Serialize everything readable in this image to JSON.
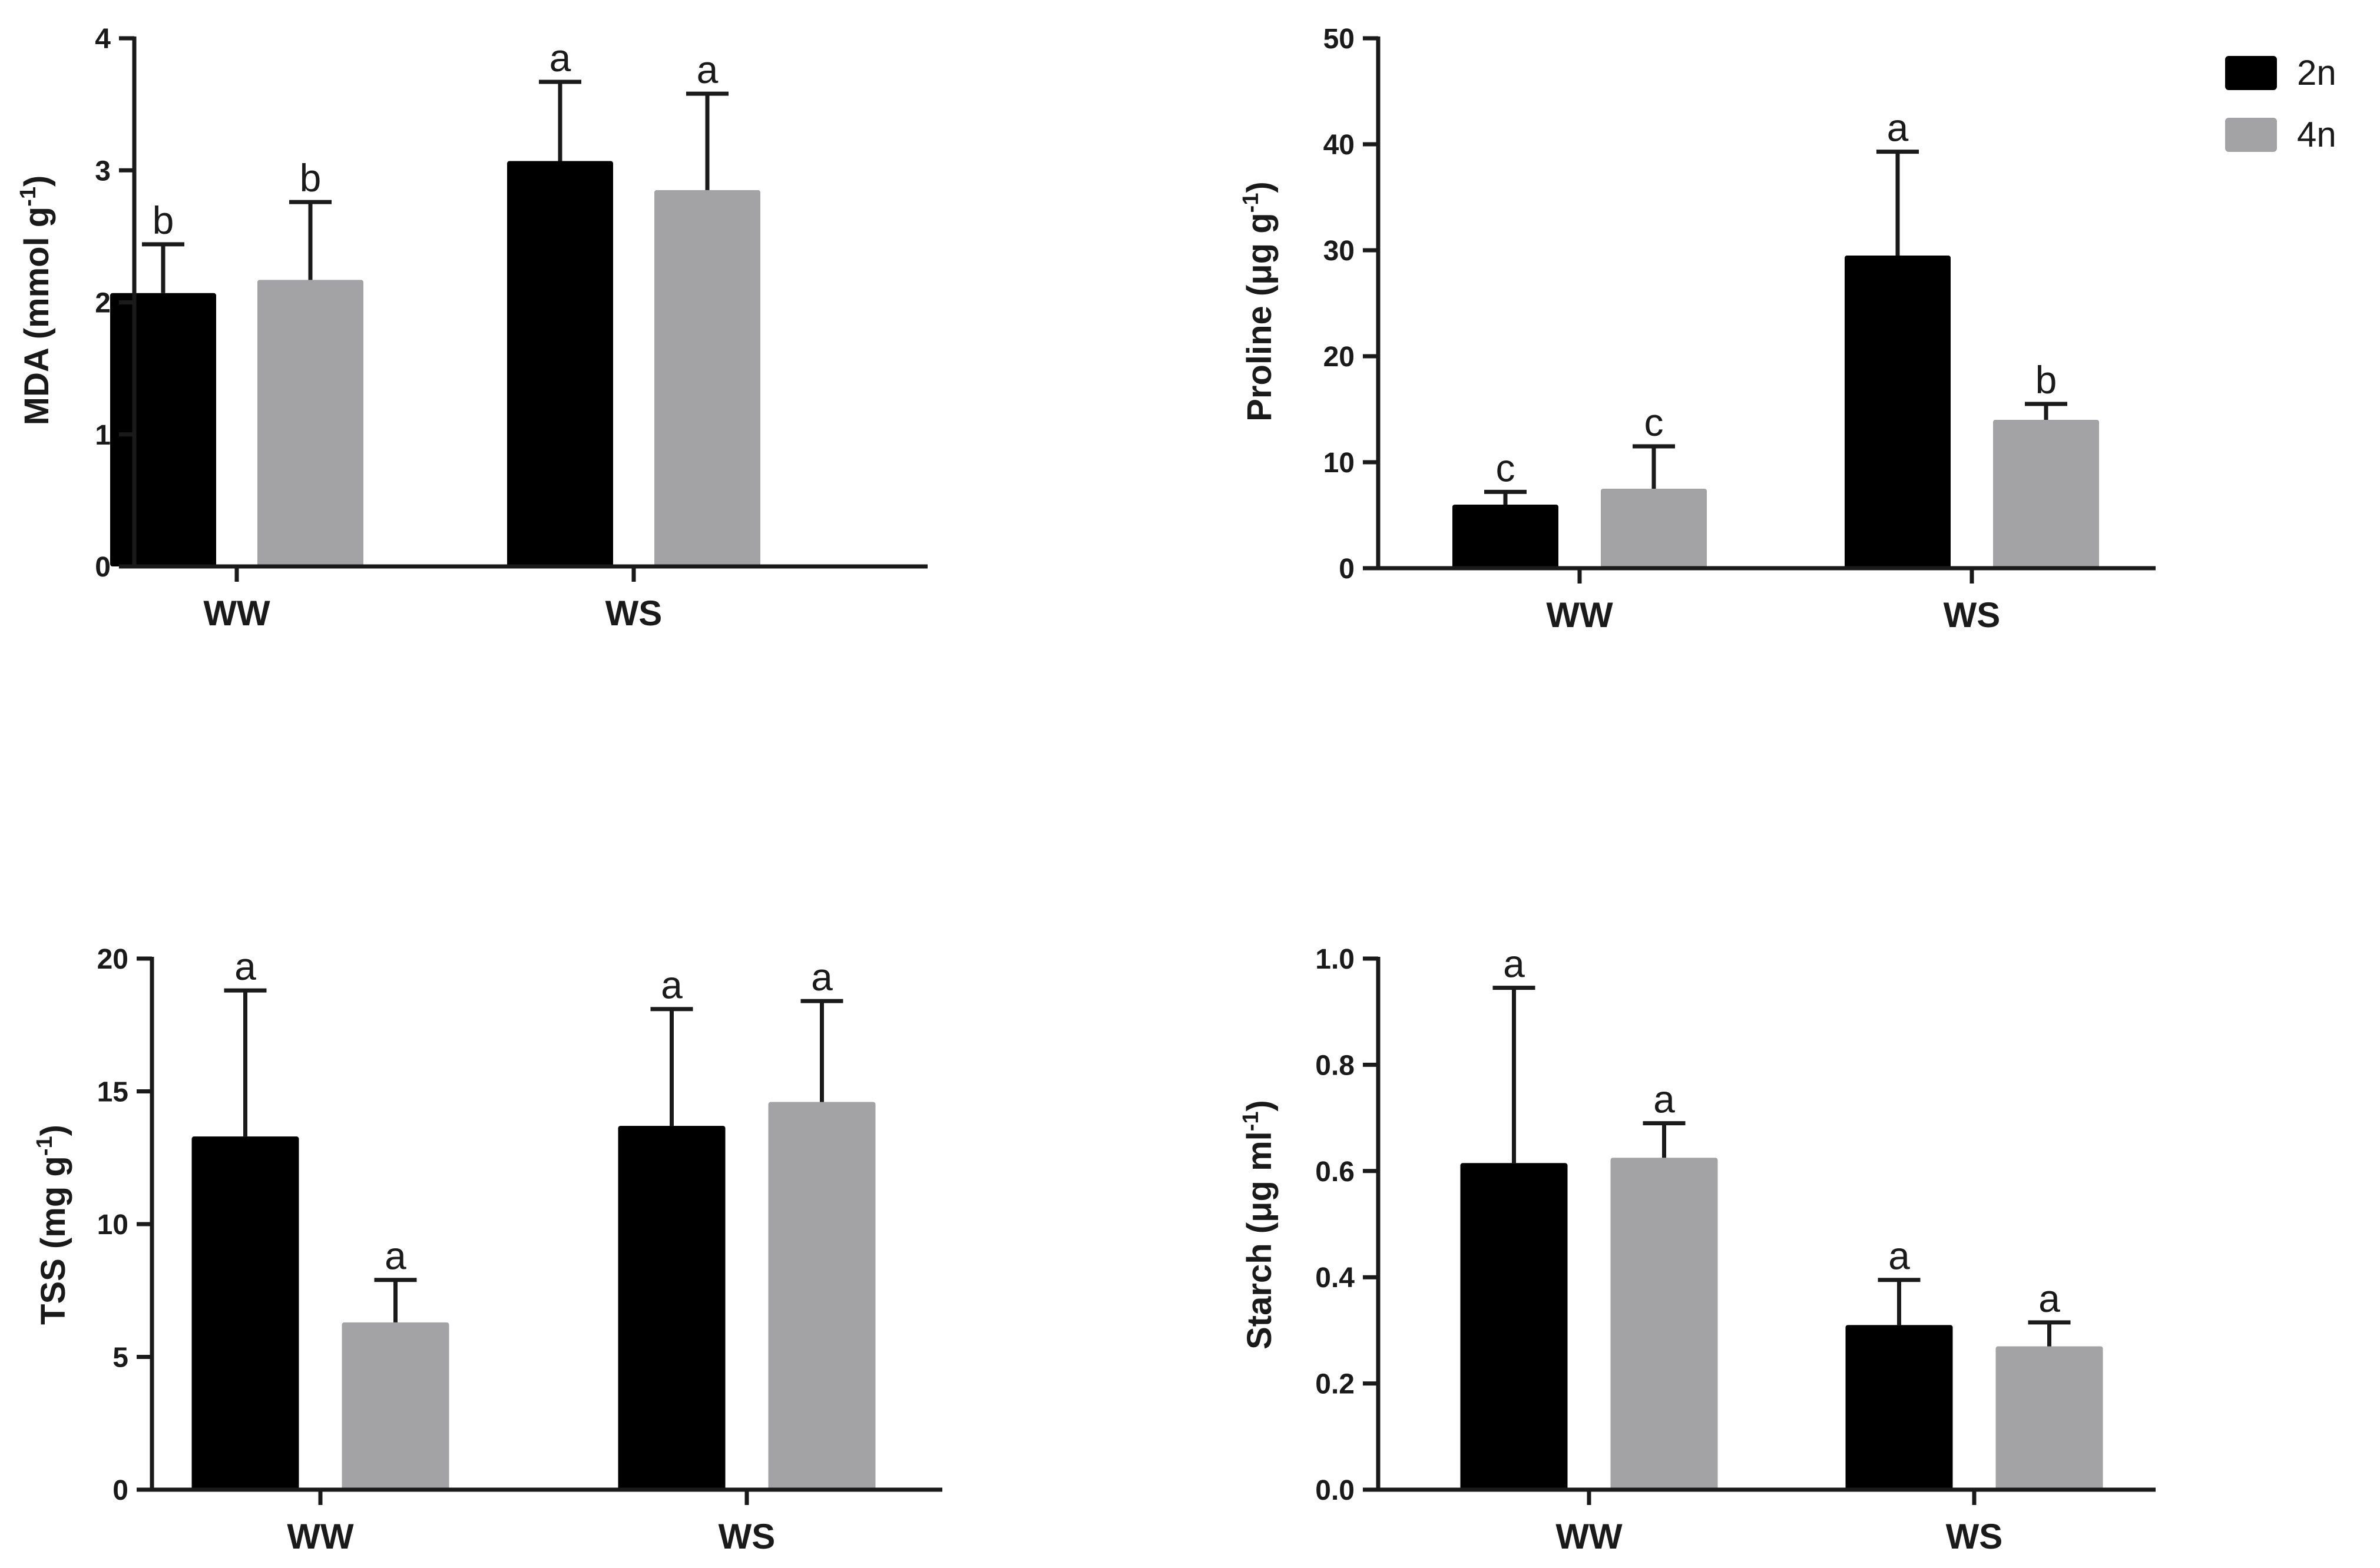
{
  "colors": {
    "2n": "#000000",
    "4n": "#a3a3a6",
    "axis": "#1a1a1a"
  },
  "legend": [
    {
      "name": "2n",
      "color_key": "2n"
    },
    {
      "name": "4n",
      "color_key": "4n"
    }
  ],
  "chart_data": [
    {
      "type": "bar",
      "ylabel_main": "MDA (mmol g",
      "ylabel_sup": "-1",
      "ylabel_end": ")",
      "categories": [
        "WW",
        "WS"
      ],
      "ylim": [
        0,
        4
      ],
      "yticks": [
        0,
        1,
        2,
        3,
        4
      ],
      "tick_labels": [
        "0",
        "1",
        "2",
        "3",
        "4"
      ],
      "series": [
        {
          "name": "2n",
          "values": [
            2.07,
            3.07
          ],
          "errors": [
            0.37,
            0.6
          ],
          "letters": [
            "b",
            "a"
          ]
        },
        {
          "name": "4n",
          "values": [
            2.17,
            2.85
          ],
          "errors": [
            0.59,
            0.73
          ],
          "letters": [
            "b",
            "a"
          ]
        }
      ]
    },
    {
      "type": "bar",
      "ylabel_main": "Proline (μg g",
      "ylabel_sup": "-1",
      "ylabel_end": ")",
      "categories": [
        "WW",
        "WS"
      ],
      "ylim": [
        0,
        50
      ],
      "yticks": [
        0,
        10,
        20,
        30,
        40,
        50
      ],
      "tick_labels": [
        "0",
        "10",
        "20",
        "30",
        "40",
        "50"
      ],
      "series": [
        {
          "name": "2n",
          "values": [
            6.0,
            29.5
          ],
          "errors": [
            1.2,
            9.8
          ],
          "letters": [
            "c",
            "a"
          ]
        },
        {
          "name": "4n",
          "values": [
            7.5,
            14.0
          ],
          "errors": [
            4.0,
            1.5
          ],
          "letters": [
            "c",
            "b"
          ]
        }
      ]
    },
    {
      "type": "bar",
      "ylabel_main": "TSS (mg g",
      "ylabel_sup": "-1",
      "ylabel_end": ")",
      "categories": [
        "WW",
        "WS"
      ],
      "ylim": [
        0,
        20
      ],
      "yticks": [
        0,
        5,
        10,
        15,
        20
      ],
      "tick_labels": [
        "0",
        "5",
        "10",
        "15",
        "20"
      ],
      "series": [
        {
          "name": "2n",
          "values": [
            13.3,
            13.7
          ],
          "errors": [
            5.5,
            4.4
          ],
          "letters": [
            "a",
            "a"
          ]
        },
        {
          "name": "4n",
          "values": [
            6.3,
            14.6
          ],
          "errors": [
            1.6,
            3.8
          ],
          "letters": [
            "a",
            "a"
          ]
        }
      ]
    },
    {
      "type": "bar",
      "ylabel_main": "Starch (μg ml",
      "ylabel_sup": "-1",
      "ylabel_end": ")",
      "categories": [
        "WW",
        "WS"
      ],
      "ylim": [
        0,
        1.0
      ],
      "yticks": [
        0,
        0.2,
        0.4,
        0.6,
        0.8,
        1.0
      ],
      "tick_labels": [
        "0.0",
        "0.2",
        "0.4",
        "0.6",
        "0.8",
        "1.0"
      ],
      "series": [
        {
          "name": "2n",
          "values": [
            0.615,
            0.31
          ],
          "errors": [
            0.33,
            0.085
          ],
          "letters": [
            "a",
            "a"
          ]
        },
        {
          "name": "4n",
          "values": [
            0.625,
            0.27
          ],
          "errors": [
            0.065,
            0.045
          ],
          "letters": [
            "a",
            "a"
          ]
        }
      ]
    }
  ]
}
